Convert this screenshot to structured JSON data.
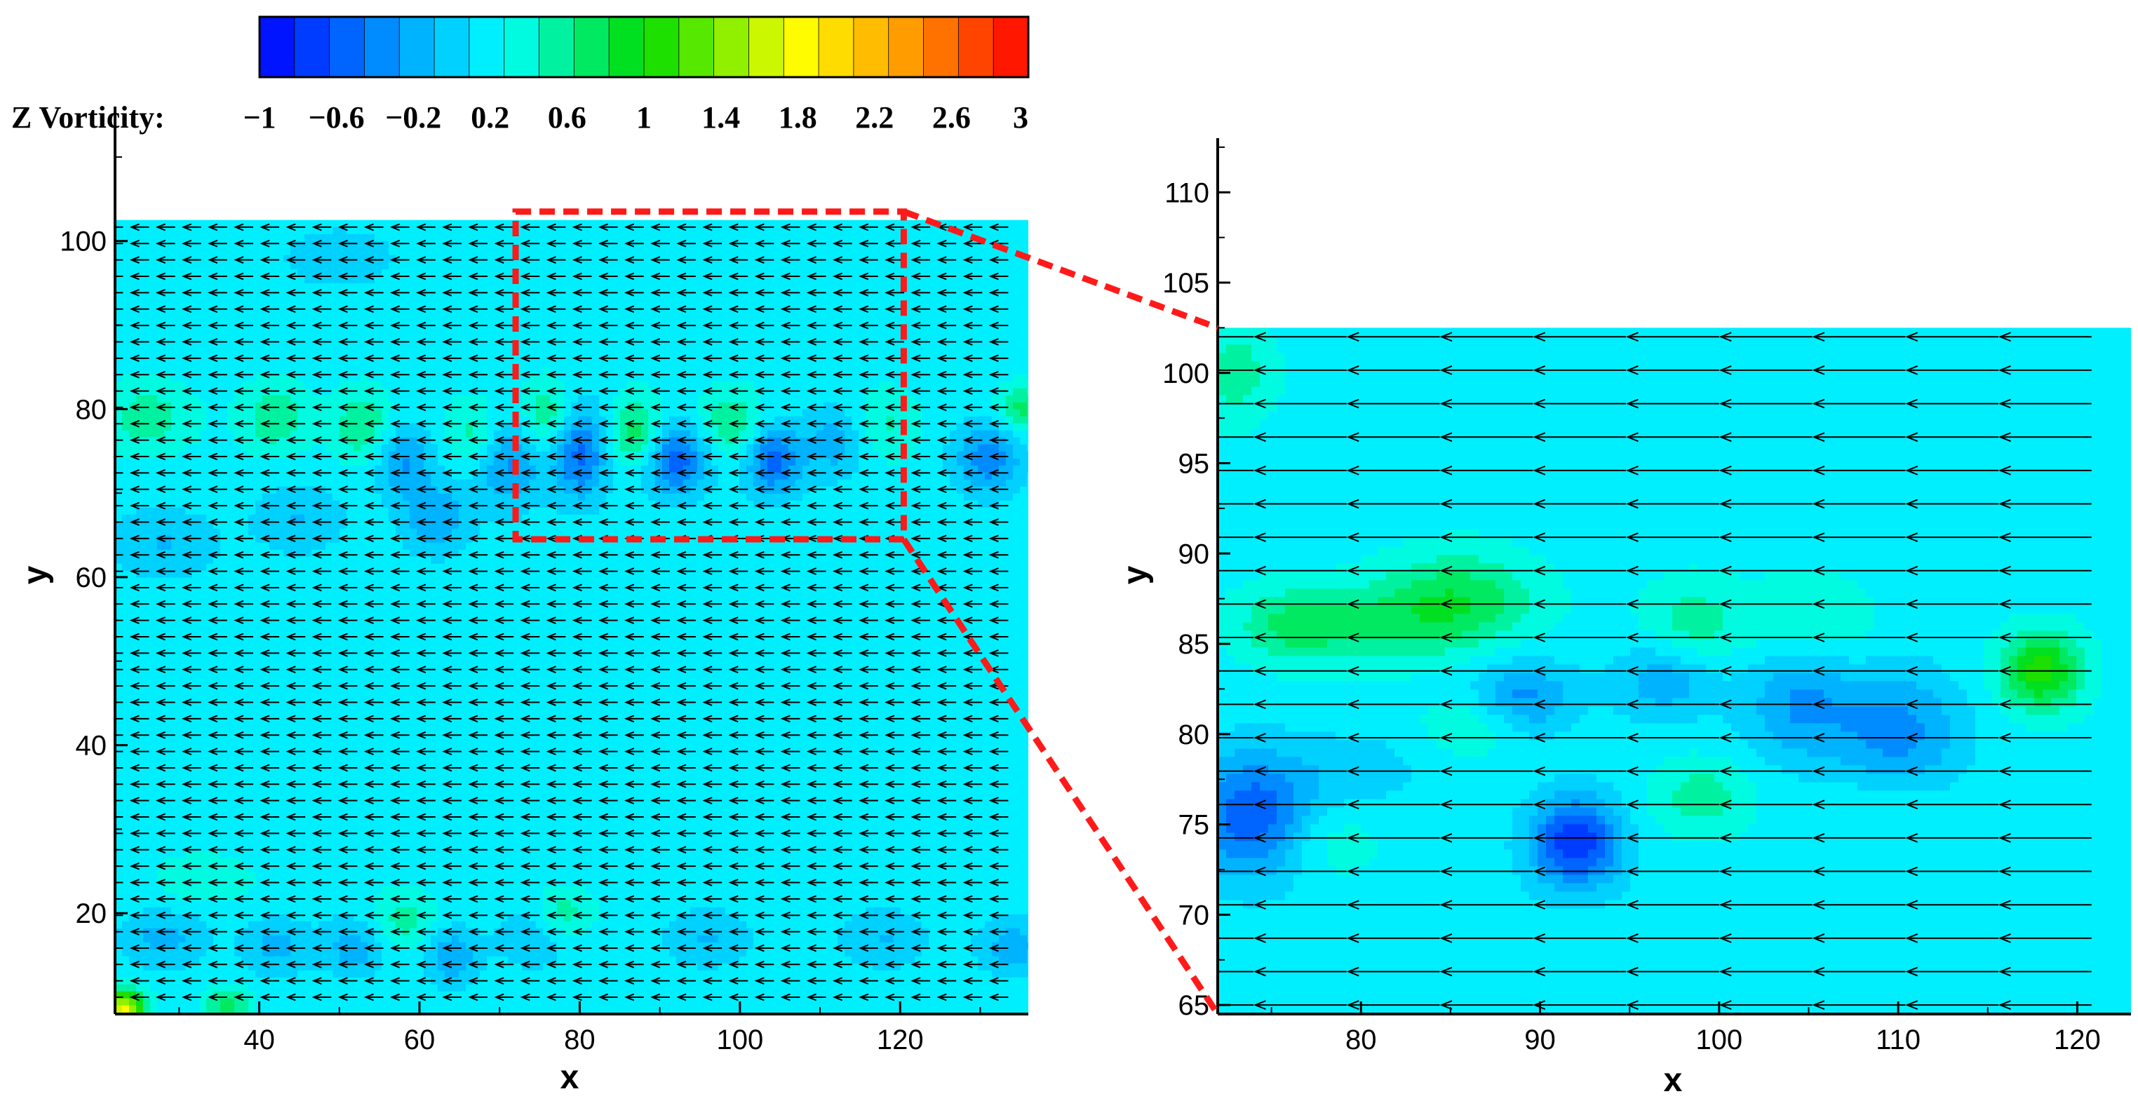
{
  "colorbar": {
    "label": "Z Vorticity:",
    "min": -1,
    "max": 3,
    "levels": 22,
    "ticks": [
      "−1",
      "−0.6",
      "−0.2",
      "0.2",
      "0.6",
      "1",
      "1.4",
      "1.8",
      "2.2",
      "2.6",
      "3"
    ],
    "tick_values": [
      -1,
      -0.6,
      -0.2,
      0.2,
      0.6,
      1,
      1.4,
      1.8,
      2.2,
      2.6,
      3
    ]
  },
  "zoom_box_color": "#ff1a1a",
  "chart_data": [
    {
      "type": "heatmap",
      "title": "",
      "xlabel": "x",
      "ylabel": "y",
      "xlim": [
        22,
        136
      ],
      "ylim": [
        8,
        116
      ],
      "field_extent": {
        "x": [
          22,
          136
        ],
        "y": [
          8,
          102.5
        ]
      },
      "x_ticks": [
        "40",
        "60",
        "80",
        "100",
        "120"
      ],
      "x_tick_values": [
        40,
        60,
        80,
        100,
        120
      ],
      "y_ticks": [
        "20",
        "40",
        "60",
        "80",
        "100"
      ],
      "y_tick_values": [
        20,
        40,
        60,
        80,
        100
      ],
      "background_vorticity": 0.2,
      "vorticity_blobs": [
        {
          "x": 26,
          "y": 79,
          "sx": 4,
          "sy": 3,
          "w": 0.35
        },
        {
          "x": 42,
          "y": 79,
          "sx": 3,
          "sy": 3,
          "w": 0.4
        },
        {
          "x": 53,
          "y": 78,
          "sx": 2.5,
          "sy": 3,
          "w": 0.45
        },
        {
          "x": 58,
          "y": 74,
          "sx": 2.5,
          "sy": 3,
          "w": -0.5
        },
        {
          "x": 62,
          "y": 67,
          "sx": 3,
          "sy": 3,
          "w": -0.45
        },
        {
          "x": 67,
          "y": 77,
          "sx": 2.5,
          "sy": 3,
          "w": 0.4
        },
        {
          "x": 71,
          "y": 74,
          "sx": 3,
          "sy": 4,
          "w": -0.55
        },
        {
          "x": 76,
          "y": 79,
          "sx": 2.5,
          "sy": 3,
          "w": 0.5
        },
        {
          "x": 80,
          "y": 75,
          "sx": 2.5,
          "sy": 4,
          "w": -0.75
        },
        {
          "x": 87,
          "y": 77,
          "sx": 2.5,
          "sy": 3,
          "w": 0.6
        },
        {
          "x": 92,
          "y": 74,
          "sx": 3,
          "sy": 3,
          "w": -0.8
        },
        {
          "x": 99,
          "y": 78,
          "sx": 3,
          "sy": 3,
          "w": 0.45
        },
        {
          "x": 104,
          "y": 74,
          "sx": 2.5,
          "sy": 3,
          "w": -0.75
        },
        {
          "x": 112,
          "y": 76,
          "sx": 3,
          "sy": 3,
          "w": -0.4
        },
        {
          "x": 118,
          "y": 78,
          "sx": 3,
          "sy": 3,
          "w": 0.3
        },
        {
          "x": 131,
          "y": 74,
          "sx": 3,
          "sy": 3,
          "w": -0.6
        },
        {
          "x": 135,
          "y": 80,
          "sx": 2,
          "sy": 2,
          "w": 0.5
        },
        {
          "x": 45,
          "y": 67,
          "sx": 4,
          "sy": 3,
          "w": -0.3
        },
        {
          "x": 28,
          "y": 64,
          "sx": 5,
          "sy": 3,
          "w": -0.3
        },
        {
          "x": 50,
          "y": 98,
          "sx": 6,
          "sy": 3,
          "w": -0.2
        },
        {
          "x": 28,
          "y": 17,
          "sx": 4,
          "sy": 2.5,
          "w": -0.35
        },
        {
          "x": 42,
          "y": 16,
          "sx": 3,
          "sy": 2.5,
          "w": -0.35
        },
        {
          "x": 52,
          "y": 16,
          "sx": 3,
          "sy": 2.5,
          "w": -0.4
        },
        {
          "x": 58,
          "y": 19,
          "sx": 3,
          "sy": 2.5,
          "w": 0.35
        },
        {
          "x": 64,
          "y": 15,
          "sx": 2.5,
          "sy": 2.5,
          "w": -0.45
        },
        {
          "x": 74,
          "y": 17,
          "sx": 3,
          "sy": 2.5,
          "w": -0.3
        },
        {
          "x": 78,
          "y": 20,
          "sx": 2.5,
          "sy": 2,
          "w": 0.35
        },
        {
          "x": 96,
          "y": 17,
          "sx": 4,
          "sy": 2.5,
          "w": -0.3
        },
        {
          "x": 118,
          "y": 17,
          "sx": 4,
          "sy": 2.5,
          "w": -0.3
        },
        {
          "x": 134,
          "y": 16,
          "sx": 3,
          "sy": 2.5,
          "w": -0.4
        },
        {
          "x": 33,
          "y": 24,
          "sx": 4,
          "sy": 2,
          "w": 0.25
        },
        {
          "x": 23,
          "y": 8.5,
          "sx": 1.8,
          "sy": 1.6,
          "w": 1.6
        },
        {
          "x": 36,
          "y": 9,
          "sx": 2,
          "sy": 1.5,
          "w": 0.5
        }
      ],
      "vectors": {
        "x_start": 23,
        "x_end": 136,
        "x_step": 3.25,
        "y_start": 10,
        "y_end": 102.5,
        "y_step": 1.95,
        "u": -2.2,
        "v": 0
      }
    },
    {
      "type": "heatmap",
      "title": "",
      "xlabel": "x",
      "ylabel": "y",
      "xlim": [
        72,
        123
      ],
      "ylim": [
        64.5,
        113
      ],
      "field_extent": {
        "x": [
          72,
          123
        ],
        "y": [
          64.5,
          102.5
        ]
      },
      "x_ticks": [
        "80",
        "90",
        "100",
        "110",
        "120"
      ],
      "x_tick_values": [
        80,
        90,
        100,
        110,
        120
      ],
      "y_ticks": [
        "65",
        "70",
        "75",
        "80",
        "85",
        "90",
        "95",
        "100",
        "105",
        "110"
      ],
      "y_tick_values": [
        65,
        70,
        75,
        80,
        85,
        90,
        95,
        100,
        105,
        110
      ],
      "background_vorticity": 0.2,
      "vorticity_blobs": [
        {
          "x": 73,
          "y": 100,
          "sx": 1.5,
          "sy": 2,
          "w": 0.35
        },
        {
          "x": 85.5,
          "y": 87.5,
          "sx": 3,
          "sy": 1.8,
          "w": 0.55
        },
        {
          "x": 80,
          "y": 86,
          "sx": 4,
          "sy": 1.5,
          "w": 0.4
        },
        {
          "x": 98.5,
          "y": 86,
          "sx": 2,
          "sy": 1.8,
          "w": 0.35
        },
        {
          "x": 105,
          "y": 86,
          "sx": 2.5,
          "sy": 1.8,
          "w": 0.35
        },
        {
          "x": 118,
          "y": 83.5,
          "sx": 1.6,
          "sy": 1.5,
          "w": 0.9
        },
        {
          "x": 76,
          "y": 86,
          "sx": 2,
          "sy": 1.5,
          "w": 0.3
        },
        {
          "x": 89,
          "y": 82,
          "sx": 2,
          "sy": 1.5,
          "w": -0.55
        },
        {
          "x": 97,
          "y": 83,
          "sx": 2,
          "sy": 1.5,
          "w": -0.45
        },
        {
          "x": 104.5,
          "y": 82,
          "sx": 2.2,
          "sy": 2.5,
          "w": -0.5
        },
        {
          "x": 110,
          "y": 80,
          "sx": 2.5,
          "sy": 2.5,
          "w": -0.55
        },
        {
          "x": 92,
          "y": 74,
          "sx": 1.8,
          "sy": 1.8,
          "w": -1.0
        },
        {
          "x": 74,
          "y": 75.5,
          "sx": 2.5,
          "sy": 2.5,
          "w": -0.8
        },
        {
          "x": 78,
          "y": 74,
          "sx": 2,
          "sy": 1.5,
          "w": 0.25
        },
        {
          "x": 99,
          "y": 76.5,
          "sx": 2,
          "sy": 1.5,
          "w": 0.35
        },
        {
          "x": 86.5,
          "y": 80.5,
          "sx": 2,
          "sy": 1.2,
          "w": 0.3
        },
        {
          "x": 109,
          "y": 76,
          "sx": 2.5,
          "sy": 1.5,
          "w": 0.15
        },
        {
          "x": 80,
          "y": 78,
          "sx": 2.5,
          "sy": 1.5,
          "w": -0.2
        }
      ],
      "vectors": {
        "x_start": 74,
        "x_end": 123,
        "x_step": 5.2,
        "y_start": 65,
        "y_end": 102.5,
        "y_step": 1.85,
        "u": -5.1,
        "v": 0
      }
    }
  ]
}
